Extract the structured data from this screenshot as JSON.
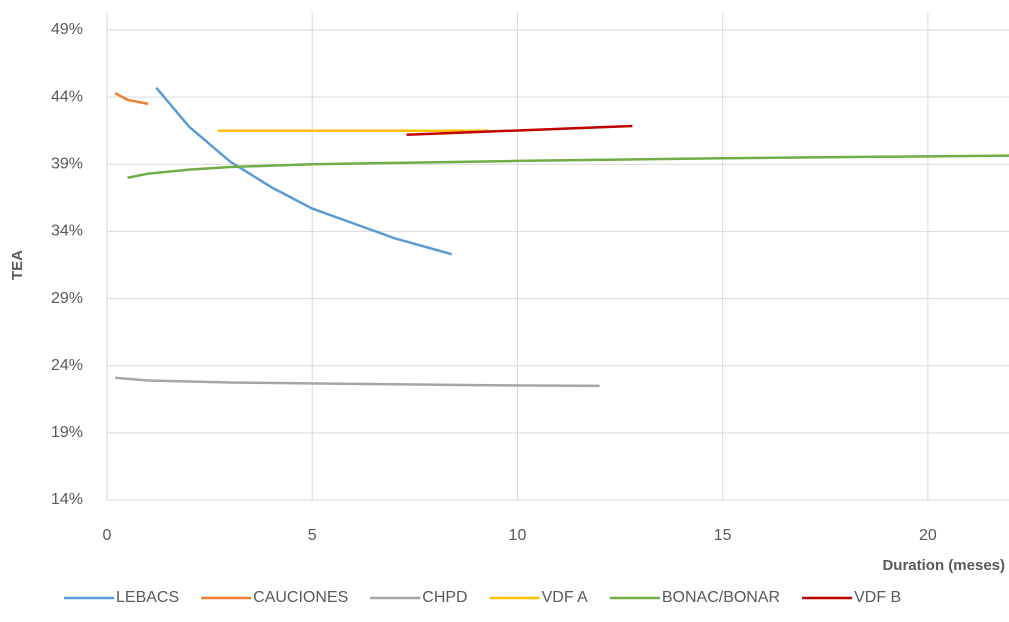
{
  "chart_data": {
    "type": "line",
    "ylabel": "TEA",
    "xlabel": "Duration (meses)",
    "xlim": [
      0,
      22
    ],
    "xticks": [
      0,
      5,
      10,
      15,
      20
    ],
    "ylim": [
      14,
      49
    ],
    "yticks": [
      {
        "value": 14,
        "label": "14%"
      },
      {
        "value": 19,
        "label": "19%"
      },
      {
        "value": 24,
        "label": "24%"
      },
      {
        "value": 29,
        "label": "29%"
      },
      {
        "value": 34,
        "label": "34%"
      },
      {
        "value": 39,
        "label": "39%"
      },
      {
        "value": 44,
        "label": "44%"
      },
      {
        "value": 49,
        "label": "49%"
      }
    ],
    "grid": true,
    "legend": "bottom",
    "series": [
      {
        "name": "LEBACS",
        "color": "#5b9bd5",
        "x": [
          1.2,
          2,
          3,
          4,
          5,
          6,
          7,
          8.4
        ],
        "values": [
          44.7,
          41.8,
          39.2,
          37.3,
          35.7,
          34.6,
          33.5,
          32.3
        ]
      },
      {
        "name": "CAUCIONES",
        "color": "#ed7d31",
        "x": [
          0.2,
          0.5,
          1
        ],
        "values": [
          44.3,
          43.8,
          43.5
        ]
      },
      {
        "name": "CHPD",
        "color": "#a5a5a5",
        "x": [
          0.2,
          1,
          3,
          6,
          9,
          12
        ],
        "values": [
          23.1,
          22.9,
          22.75,
          22.65,
          22.55,
          22.5
        ]
      },
      {
        "name": "VDF A",
        "color": "#ffc000",
        "x": [
          2.7,
          9.3
        ],
        "values": [
          41.5,
          41.5
        ]
      },
      {
        "name": "BONAC/BONAR",
        "color": "#70ad47",
        "x": [
          0.5,
          1,
          2,
          3,
          5,
          10,
          15,
          22
        ],
        "values": [
          38.0,
          38.3,
          38.6,
          38.8,
          39.0,
          39.25,
          39.45,
          39.65
        ]
      },
      {
        "name": "VDF B",
        "color": "#c00000",
        "x": [
          7.3,
          12.8
        ],
        "values": [
          41.2,
          41.85
        ]
      }
    ]
  }
}
